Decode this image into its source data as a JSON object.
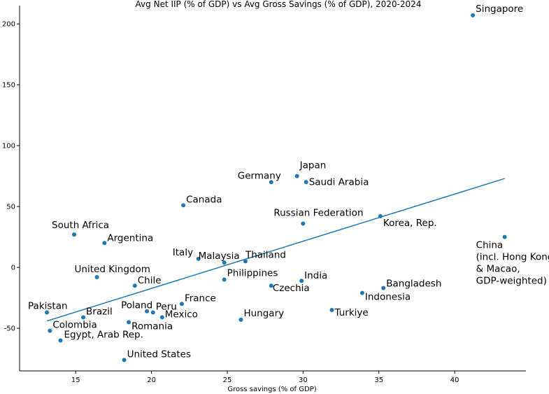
{
  "chart_data": {
    "type": "scatter",
    "title": "Avg Net IIP (% of GDP) vs Avg Gross Savings (% of GDP), 2020-2024",
    "xlabel": "Gross savings (% of GDP)",
    "ylabel": "",
    "xlim": [
      11.3,
      44.7
    ],
    "ylim": [
      -85,
      215
    ],
    "xticks": [
      15,
      20,
      25,
      30,
      35,
      40
    ],
    "yticks": [
      -50,
      0,
      50,
      100,
      150,
      200
    ],
    "grid": false,
    "points": [
      {
        "label": "Singapore",
        "x": 41.2,
        "y": 207
      },
      {
        "label": "Japan",
        "x": 29.6,
        "y": 75
      },
      {
        "label": "Germany",
        "x": 27.9,
        "y": 70
      },
      {
        "label": "Saudi Arabia",
        "x": 30.2,
        "y": 70
      },
      {
        "label": "Canada",
        "x": 22.1,
        "y": 51
      },
      {
        "label": "Russian Federation",
        "x": 30.0,
        "y": 36
      },
      {
        "label": "Korea, Rep.",
        "x": 35.1,
        "y": 42
      },
      {
        "label": "South Africa",
        "x": 14.9,
        "y": 27
      },
      {
        "label": "Argentina",
        "x": 16.9,
        "y": 20
      },
      {
        "label": "China\n(incl. Hong Kong\n& Macao,\nGDP-weighted)",
        "x": 43.3,
        "y": 25
      },
      {
        "label": "Italy",
        "x": 23.1,
        "y": 7
      },
      {
        "label": "Malaysia",
        "x": 24.8,
        "y": 4
      },
      {
        "label": "Thailand",
        "x": 26.2,
        "y": 5
      },
      {
        "label": "United Kingdom",
        "x": 16.4,
        "y": -8
      },
      {
        "label": "Philippines",
        "x": 24.8,
        "y": -10
      },
      {
        "label": "India",
        "x": 29.9,
        "y": -11
      },
      {
        "label": "Chile",
        "x": 18.9,
        "y": -15
      },
      {
        "label": "Czechia",
        "x": 27.9,
        "y": -15
      },
      {
        "label": "Bangladesh",
        "x": 35.3,
        "y": -17
      },
      {
        "label": "Indonesia",
        "x": 33.9,
        "y": -21
      },
      {
        "label": "France",
        "x": 22.0,
        "y": -30
      },
      {
        "label": "Pakistan",
        "x": 13.1,
        "y": -37
      },
      {
        "label": "Brazil",
        "x": 15.5,
        "y": -41
      },
      {
        "label": "Poland",
        "x": 19.7,
        "y": -36
      },
      {
        "label": "Peru",
        "x": 20.1,
        "y": -37
      },
      {
        "label": "Mexico",
        "x": 20.7,
        "y": -41
      },
      {
        "label": "Turkiye",
        "x": 31.9,
        "y": -35
      },
      {
        "label": "Hungary",
        "x": 25.9,
        "y": -43
      },
      {
        "label": "Romania",
        "x": 18.5,
        "y": -45
      },
      {
        "label": "Colombia",
        "x": 13.3,
        "y": -52
      },
      {
        "label": "Egypt, Arab Rep.",
        "x": 14.0,
        "y": -60
      },
      {
        "label": "United States",
        "x": 18.2,
        "y": -76
      }
    ],
    "trendline": {
      "x": [
        13.1,
        43.3
      ],
      "y": [
        -44,
        73
      ]
    }
  }
}
